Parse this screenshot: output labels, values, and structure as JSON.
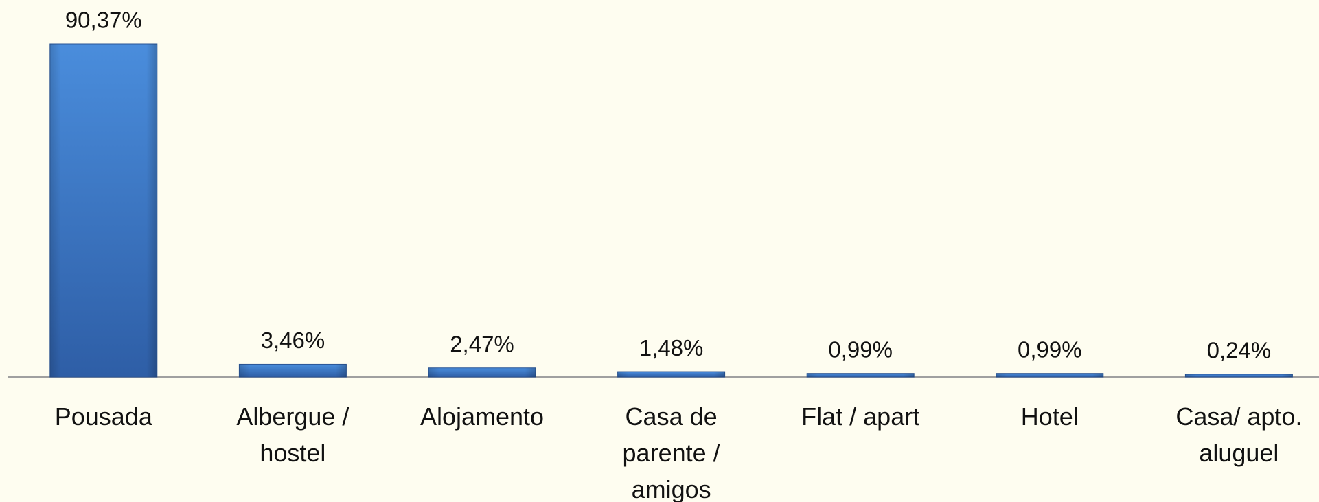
{
  "chart_data": {
    "type": "bar",
    "categories": [
      "Pousada",
      "Albergue / hostel",
      "Alojamento",
      "Casa de parente / amigos",
      "Flat / apart",
      "Hotel",
      "Casa/ apto. aluguel"
    ],
    "values": [
      90.37,
      3.46,
      2.47,
      1.48,
      0.99,
      0.99,
      0.24
    ],
    "value_labels": [
      "90,37%",
      "3,46%",
      "2,47%",
      "1,48%",
      "0,99%",
      "0,99%",
      "0,24%"
    ],
    "color": "#3f7dcc"
  }
}
